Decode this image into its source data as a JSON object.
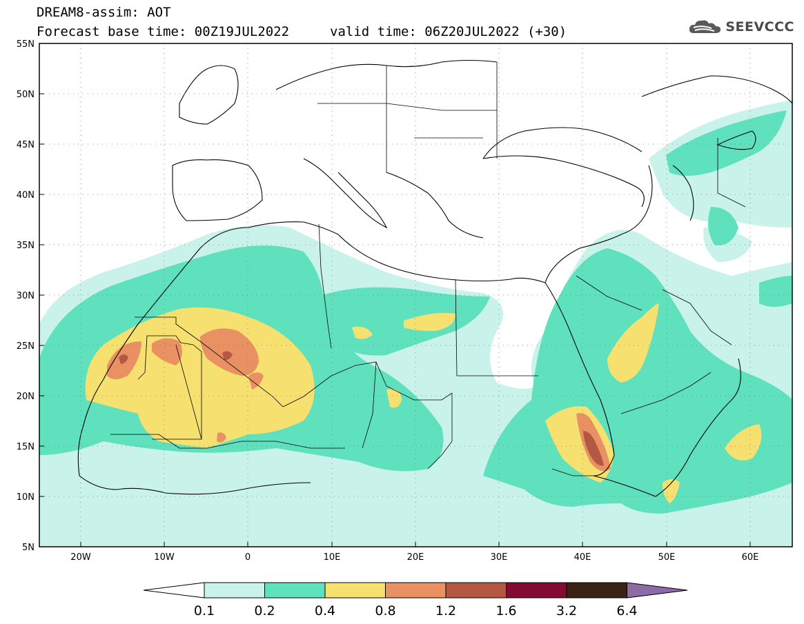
{
  "header": {
    "line1": "DREAM8-assim: AOT",
    "line2": "Forecast base time: 00Z19JUL2022",
    "valid": "valid time: 06Z20JUL2022 (+30)"
  },
  "logo": {
    "text": "SEEVCCC",
    "icon": "cloud-logo-icon"
  },
  "map": {
    "lat_labels": [
      "55N",
      "50N",
      "45N",
      "40N",
      "35N",
      "30N",
      "25N",
      "20N",
      "15N",
      "10N",
      "5N"
    ],
    "lon_labels": [
      "20W",
      "10W",
      "0",
      "10E",
      "20E",
      "30E",
      "40E",
      "50E",
      "60E"
    ],
    "lon_range": [
      -25,
      65
    ],
    "lat_range": [
      5,
      55
    ]
  },
  "legend": {
    "thresholds": [
      "0.1",
      "0.2",
      "0.4",
      "0.8",
      "1.2",
      "1.6",
      "3.2",
      "6.4"
    ],
    "colors": [
      "#c8f2ea",
      "#5fe1bd",
      "#f6e170",
      "#ea9163",
      "#b45844",
      "#810b33",
      "#3a2312",
      "#8e6aa6"
    ],
    "under_color": "#ffffff"
  }
}
